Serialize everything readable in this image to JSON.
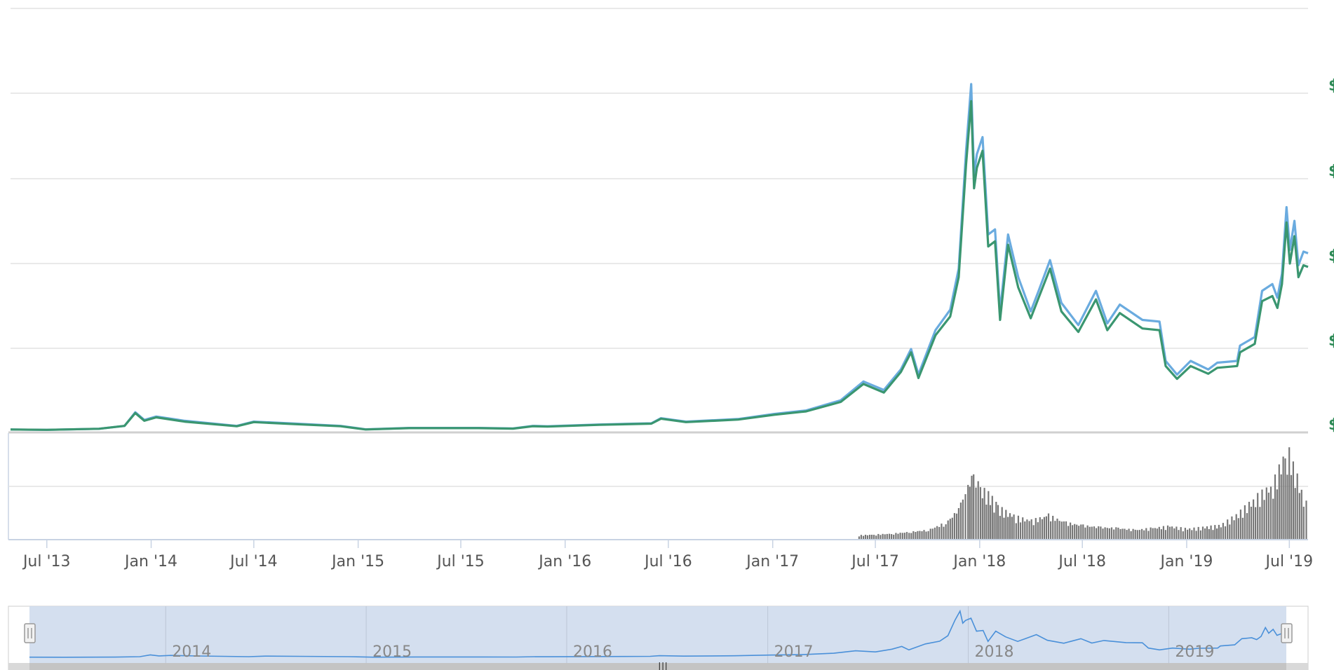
{
  "chart_data": {
    "type": "line",
    "x_tick_labels": [
      "Jul '13",
      "Jan '14",
      "Jul '14",
      "Jan '15",
      "Jul '15",
      "Jan '16",
      "Jul '16",
      "Jan '17",
      "Jul '17",
      "Jan '18",
      "Jul '18",
      "Jan '19",
      "Jul '19"
    ],
    "x_range": [
      "2013-04-28",
      "2019-08-03"
    ],
    "navigator_year_labels": [
      "2014",
      "2015",
      "2016",
      "2017",
      "2018",
      "2019"
    ],
    "y_axis_labels": [
      "$",
      "$",
      "$",
      "$",
      "$"
    ],
    "grid": true,
    "series": [
      {
        "color": "#6aabdf",
        "points": [
          [
            "2013-04-28",
            0.09
          ],
          [
            "2013-07-01",
            0.07
          ],
          [
            "2013-10-01",
            0.13
          ],
          [
            "2013-11-15",
            0.3
          ],
          [
            "2013-12-04",
            1.1
          ],
          [
            "2013-12-20",
            0.65
          ],
          [
            "2014-01-10",
            0.85
          ],
          [
            "2014-03-01",
            0.6
          ],
          [
            "2014-06-01",
            0.3
          ],
          [
            "2014-07-01",
            0.55
          ],
          [
            "2014-09-01",
            0.45
          ],
          [
            "2014-12-01",
            0.3
          ],
          [
            "2015-01-14",
            0.1
          ],
          [
            "2015-04-01",
            0.18
          ],
          [
            "2015-08-01",
            0.18
          ],
          [
            "2015-10-01",
            0.15
          ],
          [
            "2015-11-05",
            0.3
          ],
          [
            "2015-12-01",
            0.28
          ],
          [
            "2016-03-01",
            0.38
          ],
          [
            "2016-06-01",
            0.45
          ],
          [
            "2016-06-18",
            0.75
          ],
          [
            "2016-08-01",
            0.55
          ],
          [
            "2016-11-01",
            0.7
          ],
          [
            "2017-01-04",
            1.0
          ],
          [
            "2017-03-01",
            1.2
          ],
          [
            "2017-05-01",
            1.8
          ],
          [
            "2017-06-10",
            2.9
          ],
          [
            "2017-07-16",
            2.4
          ],
          [
            "2017-08-15",
            3.6
          ],
          [
            "2017-09-02",
            4.8
          ],
          [
            "2017-09-15",
            3.3
          ],
          [
            "2017-10-15",
            5.9
          ],
          [
            "2017-11-10",
            7.1
          ],
          [
            "2017-11-25",
            9.5
          ],
          [
            "2017-12-08",
            16.4
          ],
          [
            "2017-12-17",
            20.3
          ],
          [
            "2017-12-22",
            15.0
          ],
          [
            "2017-12-27",
            16.2
          ],
          [
            "2018-01-06",
            17.2
          ],
          [
            "2018-01-16",
            11.5
          ],
          [
            "2018-01-28",
            11.8
          ],
          [
            "2018-02-06",
            7.0
          ],
          [
            "2018-02-20",
            11.5
          ],
          [
            "2018-03-10",
            9.0
          ],
          [
            "2018-04-01",
            7.0
          ],
          [
            "2018-04-15",
            8.2
          ],
          [
            "2018-05-05",
            10.0
          ],
          [
            "2018-05-25",
            7.5
          ],
          [
            "2018-06-24",
            6.2
          ],
          [
            "2018-07-25",
            8.2
          ],
          [
            "2018-08-14",
            6.3
          ],
          [
            "2018-09-05",
            7.4
          ],
          [
            "2018-10-15",
            6.5
          ],
          [
            "2018-11-14",
            6.4
          ],
          [
            "2018-11-25",
            4.1
          ],
          [
            "2018-12-15",
            3.3
          ],
          [
            "2019-01-08",
            4.1
          ],
          [
            "2019-02-08",
            3.6
          ],
          [
            "2019-02-24",
            4.0
          ],
          [
            "2019-03-31",
            4.1
          ],
          [
            "2019-04-05",
            5.0
          ],
          [
            "2019-05-01",
            5.5
          ],
          [
            "2019-05-14",
            8.2
          ],
          [
            "2019-06-01",
            8.6
          ],
          [
            "2019-06-10",
            7.8
          ],
          [
            "2019-06-18",
            9.2
          ],
          [
            "2019-06-26",
            13.1
          ],
          [
            "2019-07-02",
            10.6
          ],
          [
            "2019-07-10",
            12.3
          ],
          [
            "2019-07-17",
            9.7
          ],
          [
            "2019-07-26",
            10.5
          ],
          [
            "2019-08-03",
            10.4
          ]
        ]
      },
      {
        "color": "#3a9670",
        "points": [
          [
            "2013-04-28",
            0.09
          ],
          [
            "2013-07-01",
            0.07
          ],
          [
            "2013-10-01",
            0.13
          ],
          [
            "2013-11-15",
            0.3
          ],
          [
            "2013-12-04",
            1.05
          ],
          [
            "2013-12-20",
            0.6
          ],
          [
            "2014-01-10",
            0.8
          ],
          [
            "2014-03-01",
            0.55
          ],
          [
            "2014-06-01",
            0.28
          ],
          [
            "2014-07-01",
            0.52
          ],
          [
            "2014-09-01",
            0.42
          ],
          [
            "2014-12-01",
            0.28
          ],
          [
            "2015-01-14",
            0.09
          ],
          [
            "2015-04-01",
            0.17
          ],
          [
            "2015-08-01",
            0.17
          ],
          [
            "2015-10-01",
            0.14
          ],
          [
            "2015-11-05",
            0.28
          ],
          [
            "2015-12-01",
            0.26
          ],
          [
            "2016-03-01",
            0.36
          ],
          [
            "2016-06-01",
            0.43
          ],
          [
            "2016-06-18",
            0.72
          ],
          [
            "2016-08-01",
            0.52
          ],
          [
            "2016-11-01",
            0.67
          ],
          [
            "2017-01-04",
            0.95
          ],
          [
            "2017-03-01",
            1.15
          ],
          [
            "2017-05-01",
            1.7
          ],
          [
            "2017-06-10",
            2.75
          ],
          [
            "2017-07-16",
            2.25
          ],
          [
            "2017-08-15",
            3.45
          ],
          [
            "2017-09-02",
            4.6
          ],
          [
            "2017-09-15",
            3.1
          ],
          [
            "2017-10-15",
            5.6
          ],
          [
            "2017-11-10",
            6.7
          ],
          [
            "2017-11-25",
            9.0
          ],
          [
            "2017-12-08",
            15.6
          ],
          [
            "2017-12-17",
            19.3
          ],
          [
            "2017-12-22",
            14.2
          ],
          [
            "2017-12-27",
            15.4
          ],
          [
            "2018-01-06",
            16.4
          ],
          [
            "2018-01-16",
            10.8
          ],
          [
            "2018-01-28",
            11.1
          ],
          [
            "2018-02-06",
            6.5
          ],
          [
            "2018-02-20",
            10.9
          ],
          [
            "2018-03-10",
            8.4
          ],
          [
            "2018-04-01",
            6.6
          ],
          [
            "2018-04-15",
            7.8
          ],
          [
            "2018-05-05",
            9.5
          ],
          [
            "2018-05-25",
            7.0
          ],
          [
            "2018-06-24",
            5.8
          ],
          [
            "2018-07-25",
            7.7
          ],
          [
            "2018-08-14",
            5.9
          ],
          [
            "2018-09-05",
            6.9
          ],
          [
            "2018-10-15",
            6.0
          ],
          [
            "2018-11-14",
            5.9
          ],
          [
            "2018-11-25",
            3.8
          ],
          [
            "2018-12-15",
            3.05
          ],
          [
            "2019-01-08",
            3.8
          ],
          [
            "2019-02-08",
            3.35
          ],
          [
            "2019-02-24",
            3.7
          ],
          [
            "2019-03-31",
            3.8
          ],
          [
            "2019-04-05",
            4.6
          ],
          [
            "2019-05-01",
            5.1
          ],
          [
            "2019-05-14",
            7.6
          ],
          [
            "2019-06-01",
            7.9
          ],
          [
            "2019-06-10",
            7.2
          ],
          [
            "2019-06-18",
            8.6
          ],
          [
            "2019-06-26",
            12.2
          ],
          [
            "2019-07-02",
            9.8
          ],
          [
            "2019-07-10",
            11.4
          ],
          [
            "2019-07-17",
            9.0
          ],
          [
            "2019-07-26",
            9.7
          ],
          [
            "2019-08-03",
            9.6
          ]
        ]
      }
    ],
    "volume": {
      "color": "#777777",
      "points": [
        [
          "2017-06-01",
          0.04
        ],
        [
          "2017-07-01",
          0.05
        ],
        [
          "2017-08-01",
          0.06
        ],
        [
          "2017-09-01",
          0.08
        ],
        [
          "2017-10-01",
          0.1
        ],
        [
          "2017-11-01",
          0.18
        ],
        [
          "2017-11-20",
          0.3
        ],
        [
          "2017-12-01",
          0.45
        ],
        [
          "2017-12-10",
          0.6
        ],
        [
          "2017-12-20",
          0.7
        ],
        [
          "2018-01-01",
          0.55
        ],
        [
          "2018-01-15",
          0.5
        ],
        [
          "2018-02-01",
          0.35
        ],
        [
          "2018-03-01",
          0.25
        ],
        [
          "2018-04-01",
          0.2
        ],
        [
          "2018-05-01",
          0.26
        ],
        [
          "2018-06-01",
          0.18
        ],
        [
          "2018-07-01",
          0.15
        ],
        [
          "2018-08-01",
          0.13
        ],
        [
          "2018-09-01",
          0.12
        ],
        [
          "2018-10-01",
          0.1
        ],
        [
          "2018-11-01",
          0.12
        ],
        [
          "2018-12-01",
          0.14
        ],
        [
          "2019-01-01",
          0.11
        ],
        [
          "2019-02-01",
          0.13
        ],
        [
          "2019-03-01",
          0.15
        ],
        [
          "2019-04-01",
          0.28
        ],
        [
          "2019-05-01",
          0.45
        ],
        [
          "2019-06-01",
          0.6
        ],
        [
          "2019-06-26",
          1.0
        ],
        [
          "2019-07-10",
          0.75
        ],
        [
          "2019-07-25",
          0.45
        ],
        [
          "2019-08-03",
          0.35
        ]
      ]
    },
    "navigator": {
      "x_range": [
        "2013-04-28",
        "2019-08-03"
      ],
      "selected_range": [
        "2013-04-28",
        "2019-08-03"
      ]
    }
  }
}
